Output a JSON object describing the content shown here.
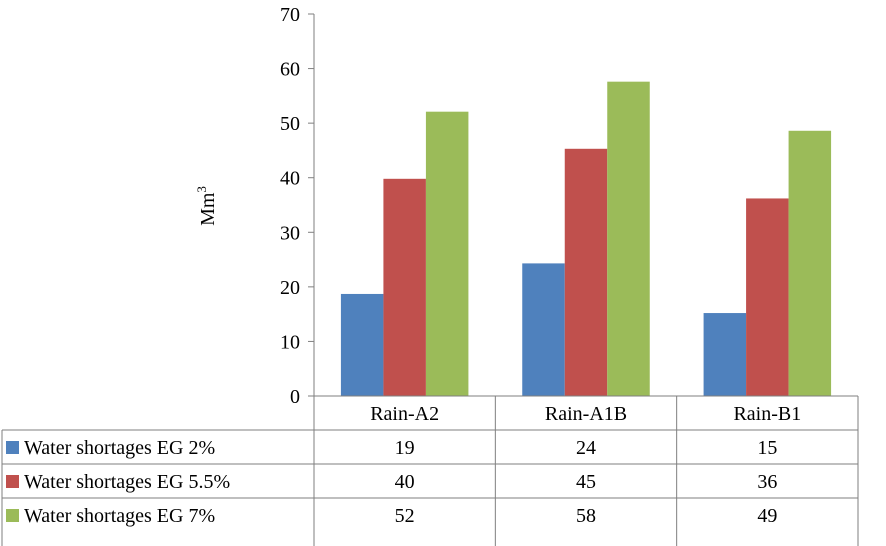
{
  "chart_data": {
    "type": "bar",
    "ylabel": "Mm",
    "ylabel_superscript": "3",
    "ylim": [
      0,
      70
    ],
    "yticks": [
      "0",
      "10",
      "20",
      "30",
      "40",
      "50",
      "60",
      "70"
    ],
    "grid": false,
    "categories": [
      "Rain-A2",
      "Rain-A1B",
      "Rain-B1"
    ],
    "series": [
      {
        "name": "Water shortages EG 2%",
        "color": "#4f81bd",
        "values": [
          18.7,
          24.3,
          15.2
        ],
        "labels": [
          "19",
          "24",
          "15"
        ]
      },
      {
        "name": "Water shortages EG 5.5%",
        "color": "#c0504d",
        "values": [
          39.8,
          45.3,
          36.2
        ],
        "labels": [
          "40",
          "45",
          "36"
        ]
      },
      {
        "name": "Water shortages EG 7%",
        "color": "#9bbb59",
        "values": [
          52.1,
          57.6,
          48.6
        ],
        "labels": [
          "52",
          "58",
          "49"
        ]
      }
    ]
  }
}
